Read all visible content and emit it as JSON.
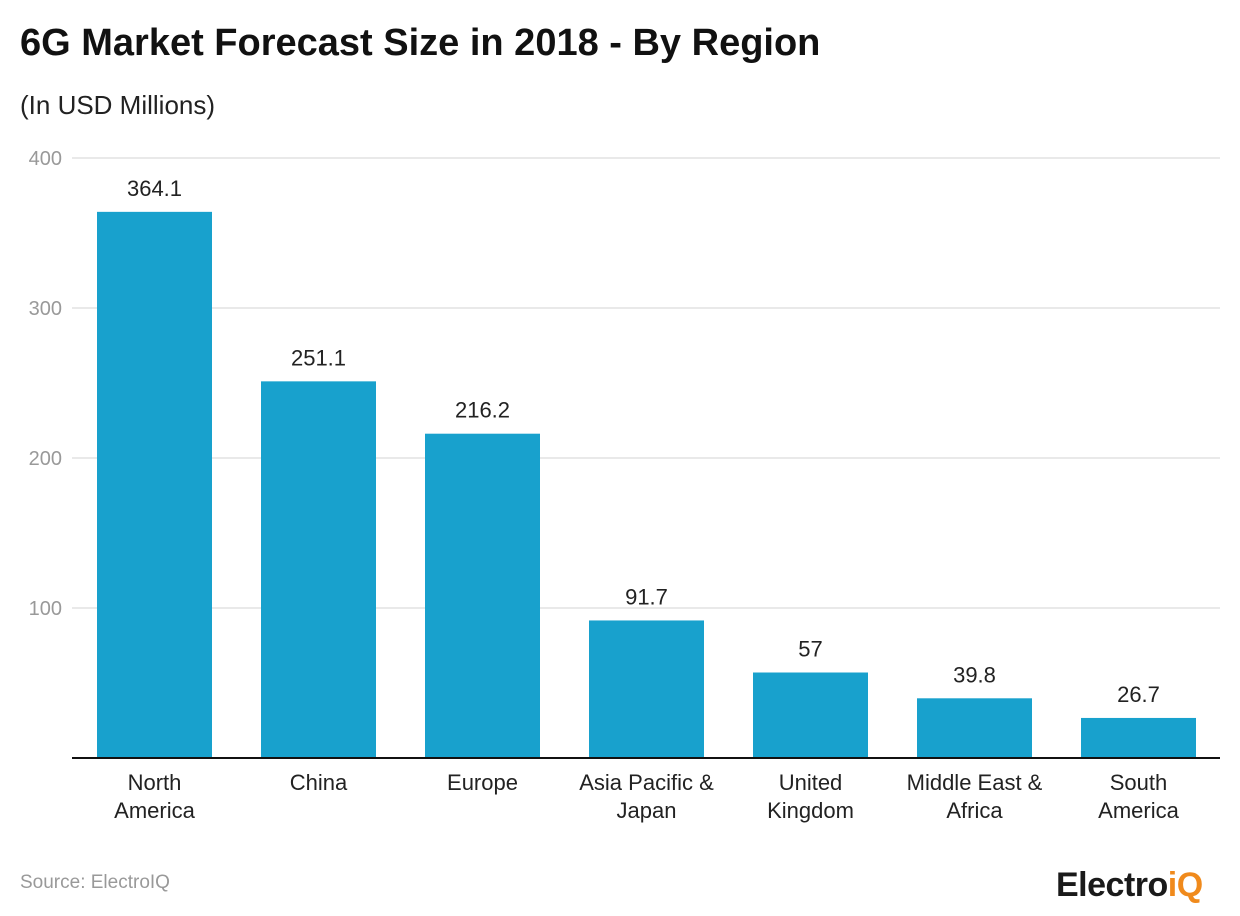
{
  "chart_data": {
    "type": "bar",
    "title": "6G Market Forecast Size in 2018 - By Region",
    "subtitle": "(In USD Millions)",
    "categories": [
      [
        "North",
        "America"
      ],
      [
        "China"
      ],
      [
        "Europe"
      ],
      [
        "Asia Pacific &",
        "Japan"
      ],
      [
        "United",
        "Kingdom"
      ],
      [
        "Middle East &",
        "Africa"
      ],
      [
        "South",
        "America"
      ]
    ],
    "values": [
      364.1,
      251.1,
      216.2,
      91.7,
      57,
      39.8,
      26.7
    ],
    "value_labels": [
      "364.1",
      "251.1",
      "216.2",
      "91.7",
      "57",
      "39.8",
      "26.7"
    ],
    "ylim": [
      0,
      400
    ],
    "yticks": [
      "100",
      "200",
      "300",
      "400"
    ],
    "ytick_values": [
      100,
      200,
      300,
      400
    ],
    "grid": true,
    "bar_color": "#18a1cd",
    "xlabel": "",
    "ylabel": ""
  },
  "source": "Source: ElectroIQ",
  "logo": {
    "main": "Electro",
    "accent": "iQ",
    "accent_color": "#f08a1c"
  }
}
